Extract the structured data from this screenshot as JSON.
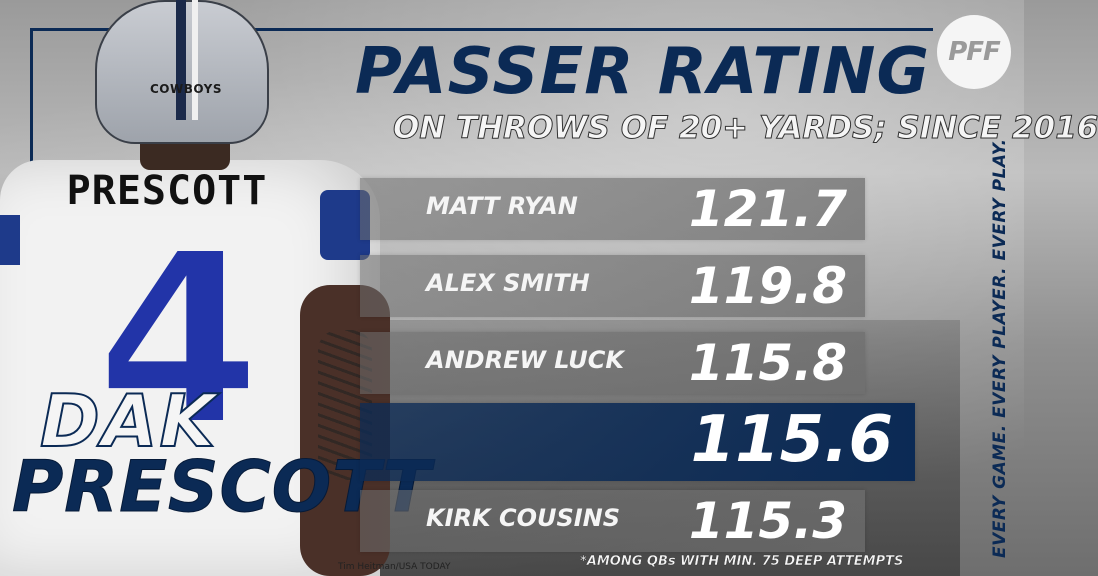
{
  "title": "PASSER RATING",
  "subtitle": "ON THROWS OF 20+ YARDS; SINCE 2016",
  "logo_text": "PFF",
  "player": {
    "helmet_text": "COWBOYS",
    "jersey_name": "PRESCOTT",
    "jersey_number": "4",
    "first_name": "DAK",
    "last_name": "PRESCOTT"
  },
  "rows": [
    {
      "name": "MATT RYAN",
      "value": "121.7",
      "highlight": false
    },
    {
      "name": "ALEX SMITH",
      "value": "119.8",
      "highlight": false
    },
    {
      "name": "ANDREW LUCK",
      "value": "115.8",
      "highlight": false
    },
    {
      "name": "",
      "value": "115.6",
      "highlight": true
    },
    {
      "name": "KIRK COUSINS",
      "value": "115.3",
      "highlight": false
    }
  ],
  "footnote": "*AMONG QBs WITH MIN. 75 DEEP ATTEMPTS",
  "photo_credit": "Tim Heitman/USA TODAY",
  "tagline": "EVERY GAME. EVERY PLAYER. EVERY PLAY.",
  "colors": {
    "navy": "#0b2a55",
    "royal_blue": "#2234a8",
    "white": "#f5f5f5"
  }
}
